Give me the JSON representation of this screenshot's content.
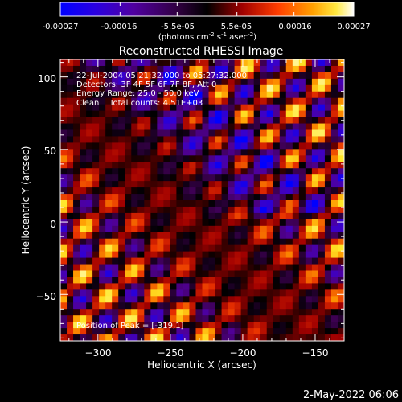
{
  "colorbar": {
    "ticks": [
      "-0.00027",
      "-0.00016",
      "-5.5e-05",
      "5.5e-05",
      "0.00016",
      "0.00027"
    ],
    "unit_parts": [
      "(photons cm",
      "-2",
      " s",
      "-1",
      " asec",
      "-2",
      ")"
    ]
  },
  "footer": {
    "date": "2-May-2022 06:06"
  },
  "chart_data": {
    "type": "heatmap",
    "title": "Reconstructed RHESSI Image",
    "xlabel": "Heliocentric X (arcsec)",
    "ylabel": "Heliocentric Y (arcsec)",
    "xlim": [
      -326,
      -130
    ],
    "ylim": [
      -82,
      112
    ],
    "x_ticks": [
      -300,
      -250,
      -200,
      -150
    ],
    "y_ticks": [
      -50,
      0,
      50,
      100
    ],
    "x_tick_labels": [
      "−300",
      "−250",
      "−200",
      "−150"
    ],
    "y_tick_labels": [
      "−50",
      "0",
      "50",
      "100"
    ],
    "colorbar_range": [
      -0.00027,
      0.00027
    ],
    "annotations": [
      "22-Jul-2004 05:21:32.000 to 05:27:32.000",
      "Detectors: 3F 4F 5F 6F 7F 8F, Att 0",
      "Energy Range: 25.0 - 50.0 keV",
      "Clean    Total counts: 4.51E+03"
    ],
    "peak_label": "Position of Peak = [-319,1]",
    "peak_position": [
      -319,
      1
    ],
    "colormap": [
      "#0000ff",
      "#3c00c8",
      "#500096",
      "#3c0050",
      "#000000",
      "#a00000",
      "#e83000",
      "#ff9a00",
      "#ffe828",
      "#ffffe0"
    ]
  }
}
